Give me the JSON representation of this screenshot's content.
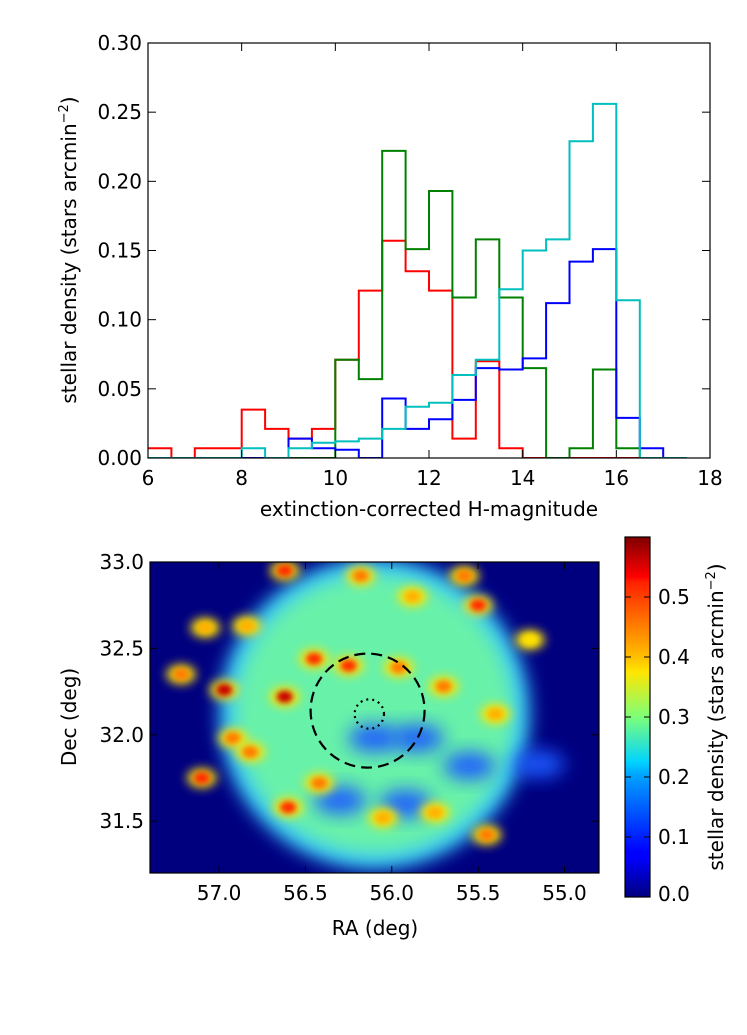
{
  "chart_data": [
    {
      "type": "histogram",
      "xlabel": "extinction-corrected H-magnitude",
      "ylabel_main": "stellar density (stars arcmin",
      "ylabel_exp": "−2",
      "ylabel_close": ")",
      "xlim": [
        6,
        18
      ],
      "ylim": [
        0,
        0.3
      ],
      "xticks": [
        6,
        8,
        10,
        12,
        14,
        16,
        18
      ],
      "xtick_labels": [
        "6",
        "8",
        "10",
        "12",
        "14",
        "16",
        "18"
      ],
      "yticks": [
        0,
        0.05,
        0.1,
        0.15,
        0.2,
        0.25,
        0.3
      ],
      "ytick_labels": [
        "0.00",
        "0.05",
        "0.10",
        "0.15",
        "0.20",
        "0.25",
        "0.30"
      ],
      "bin_edges": [
        6.0,
        6.5,
        7.0,
        7.5,
        8.0,
        8.5,
        9.0,
        9.5,
        10.0,
        10.5,
        11.0,
        11.5,
        12.0,
        12.5,
        13.0,
        13.5,
        14.0,
        14.5,
        15.0,
        15.5,
        16.0,
        16.5,
        17.0,
        17.5
      ],
      "series": [
        {
          "name": "red",
          "color": "#ff0000",
          "values": [
            0.007,
            0.0,
            0.007,
            0.007,
            0.035,
            0.021,
            0.014,
            0.021,
            0.071,
            0.121,
            0.157,
            0.135,
            0.121,
            0.014,
            0.07,
            0.007,
            0.0,
            0.0,
            0.0,
            0.0,
            0.0,
            0.0,
            0.0
          ]
        },
        {
          "name": "green",
          "color": "#008000",
          "values": [
            0.0,
            0.0,
            0.0,
            0.0,
            0.0,
            0.0,
            0.0,
            0.0,
            0.071,
            0.057,
            0.222,
            0.151,
            0.193,
            0.116,
            0.158,
            0.116,
            0.065,
            0.0,
            0.007,
            0.064,
            0.007,
            0.0,
            0.0
          ]
        },
        {
          "name": "blue",
          "color": "#0000ff",
          "values": [
            0.0,
            0.0,
            0.0,
            0.0,
            0.0,
            0.0,
            0.014,
            0.007,
            0.006,
            0.0,
            0.043,
            0.021,
            0.028,
            0.042,
            0.065,
            0.064,
            0.072,
            0.112,
            0.142,
            0.151,
            0.029,
            0.007,
            0.0
          ]
        },
        {
          "name": "cyan",
          "color": "#00bfbf",
          "values": [
            0.0,
            0.0,
            0.0,
            0.0,
            0.007,
            0.0,
            0.007,
            0.011,
            0.012,
            0.014,
            0.021,
            0.037,
            0.04,
            0.06,
            0.071,
            0.122,
            0.15,
            0.158,
            0.229,
            0.256,
            0.114,
            0.0,
            0.0
          ]
        }
      ]
    },
    {
      "type": "heatmap",
      "xlabel": "RA (deg)",
      "ylabel": "Dec (deg)",
      "xlim": [
        57.4,
        54.8
      ],
      "ylim": [
        31.2,
        33.0
      ],
      "xticks": [
        57.0,
        56.5,
        56.0,
        55.5,
        55.0
      ],
      "xtick_labels": [
        "57.0",
        "56.5",
        "56.0",
        "55.5",
        "55.0"
      ],
      "yticks": [
        31.5,
        32.0,
        32.5,
        33.0
      ],
      "ytick_labels": [
        "31.5",
        "32.0",
        "32.5",
        "33.0"
      ],
      "colorbar": {
        "label_main": "stellar density (stars arcmin",
        "label_exp": "−2",
        "label_close": ")",
        "range": [
          0.0,
          0.6
        ],
        "ticks": [
          0.0,
          0.1,
          0.2,
          0.3,
          0.4,
          0.5
        ],
        "tick_labels": [
          "0.0",
          "0.1",
          "0.2",
          "0.3",
          "0.4",
          "0.5"
        ]
      },
      "field": {
        "center_ra": 56.1,
        "center_dec": 32.12,
        "radius_deg": 0.9
      },
      "dashed_circle": {
        "ra": 56.14,
        "dec": 32.14,
        "radius_deg": 0.33
      },
      "dotted_circle": {
        "ra": 56.13,
        "dec": 32.12,
        "radius_deg": 0.085
      },
      "hotspots": [
        {
          "ra": 56.62,
          "dec": 32.22,
          "value": 0.6
        },
        {
          "ra": 56.97,
          "dec": 32.26,
          "value": 0.52
        },
        {
          "ra": 57.1,
          "dec": 31.75,
          "value": 0.5
        },
        {
          "ra": 56.6,
          "dec": 31.58,
          "value": 0.5
        },
        {
          "ra": 56.25,
          "dec": 32.4,
          "value": 0.48
        },
        {
          "ra": 56.45,
          "dec": 32.44,
          "value": 0.48
        },
        {
          "ra": 55.96,
          "dec": 32.39,
          "value": 0.45
        },
        {
          "ra": 55.7,
          "dec": 32.28,
          "value": 0.45
        },
        {
          "ra": 55.5,
          "dec": 32.75,
          "value": 0.5
        },
        {
          "ra": 55.58,
          "dec": 32.92,
          "value": 0.45
        },
        {
          "ra": 56.62,
          "dec": 32.95,
          "value": 0.47
        },
        {
          "ra": 56.18,
          "dec": 32.92,
          "value": 0.45
        },
        {
          "ra": 56.92,
          "dec": 31.98,
          "value": 0.45
        },
        {
          "ra": 56.82,
          "dec": 31.9,
          "value": 0.42
        },
        {
          "ra": 56.42,
          "dec": 31.72,
          "value": 0.42
        },
        {
          "ra": 57.22,
          "dec": 32.35,
          "value": 0.42
        },
        {
          "ra": 55.4,
          "dec": 32.12,
          "value": 0.4
        },
        {
          "ra": 55.45,
          "dec": 31.42,
          "value": 0.42
        },
        {
          "ra": 56.05,
          "dec": 31.52,
          "value": 0.4
        },
        {
          "ra": 56.84,
          "dec": 32.63,
          "value": 0.4
        },
        {
          "ra": 57.08,
          "dec": 32.62,
          "value": 0.38
        },
        {
          "ra": 55.88,
          "dec": 32.8,
          "value": 0.38
        },
        {
          "ra": 55.2,
          "dec": 32.55,
          "value": 0.36
        },
        {
          "ra": 55.75,
          "dec": 31.55,
          "value": 0.4
        }
      ],
      "coldspots": [
        {
          "ra": 55.85,
          "dec": 31.98
        },
        {
          "ra": 55.55,
          "dec": 31.82
        },
        {
          "ra": 55.15,
          "dec": 31.83
        },
        {
          "ra": 55.92,
          "dec": 31.6
        },
        {
          "ra": 56.3,
          "dec": 31.62
        },
        {
          "ra": 56.1,
          "dec": 31.98
        }
      ]
    }
  ]
}
